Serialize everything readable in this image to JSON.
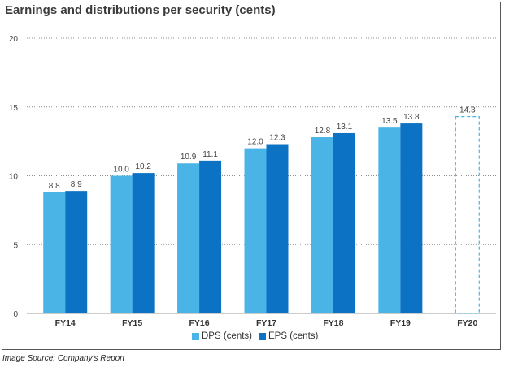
{
  "title": "Earnings and distributions per security (cents)",
  "source": "Image Source: Company's Report",
  "chart_data": {
    "type": "bar",
    "title": "Earnings and distributions per security (cents)",
    "categories": [
      "FY14",
      "FY15",
      "FY16",
      "FY17",
      "FY18",
      "FY19",
      "FY20"
    ],
    "series": [
      {
        "name": "DPS (cents)",
        "color": "#4ab4e6",
        "values": [
          8.8,
          10.0,
          10.9,
          12.0,
          12.8,
          13.5,
          null
        ],
        "labels": [
          "8.8",
          "10.0",
          "10.9",
          "12.0",
          "12.8",
          "13.5",
          null
        ]
      },
      {
        "name": "EPS (cents)",
        "color": "#0b72c4",
        "values": [
          8.9,
          10.2,
          11.1,
          12.3,
          13.1,
          13.8,
          null
        ],
        "labels": [
          "8.9",
          "10.2",
          "11.1",
          "12.3",
          "13.1",
          "13.8",
          null
        ]
      }
    ],
    "forecast": {
      "category": "FY20",
      "value": 14.3,
      "label": "14.3",
      "style": "dashed outline",
      "color": "#4ab4e6"
    },
    "yticks": [
      0,
      5,
      10,
      15,
      20
    ],
    "ylim": [
      0,
      20
    ],
    "grid": "horizontal dotted",
    "legend": "bottom-center"
  }
}
